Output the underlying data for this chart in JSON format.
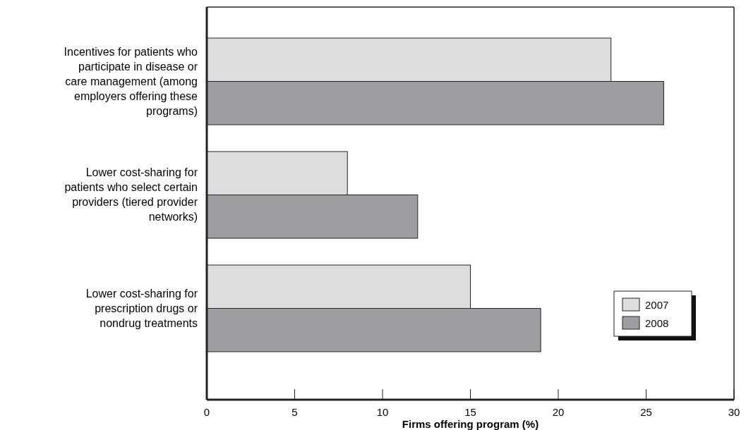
{
  "chart_data": {
    "type": "bar",
    "orientation": "horizontal",
    "xlabel": "Firms offering program (%)",
    "categories": [
      "Incentives for patients who participate in disease or care management (among employers offering these programs)",
      "Lower cost-sharing for patients who select certain providers (tiered provider networks)",
      "Lower cost-sharing for prescription drugs or nondrug treatments"
    ],
    "series": [
      {
        "name": "2007",
        "color": "#dcdddf",
        "values": [
          23,
          8,
          15
        ]
      },
      {
        "name": "2008",
        "color": "#9d9ea2",
        "values": [
          26,
          12,
          19
        ]
      }
    ],
    "xlim": [
      0,
      30
    ],
    "xticks": [
      0,
      5,
      10,
      15,
      20,
      25,
      30
    ],
    "legend": "bottom right",
    "grid": false
  }
}
